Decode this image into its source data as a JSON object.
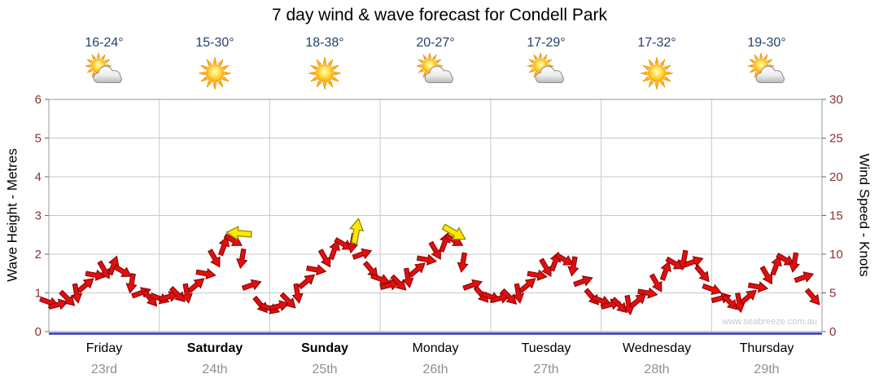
{
  "title": "7 day wind & wave forecast for Condell Park",
  "watermark": "www.seabreeze.com.au",
  "axes": {
    "left_label": "Wave Height - Metres",
    "right_label": "Wind Speed - Knots",
    "left_ticks": [
      "0",
      "1",
      "2",
      "3",
      "4",
      "5",
      "6"
    ],
    "right_ticks": [
      "0",
      "5",
      "10",
      "15",
      "20",
      "25",
      "30"
    ]
  },
  "days": [
    {
      "name": "Friday",
      "date": "23rd",
      "temp": "16-24°",
      "icon": "partly-cloudy",
      "bold": false
    },
    {
      "name": "Saturday",
      "date": "24th",
      "temp": "15-30°",
      "icon": "sunny",
      "bold": true
    },
    {
      "name": "Sunday",
      "date": "25th",
      "temp": "18-38°",
      "icon": "sunny",
      "bold": true
    },
    {
      "name": "Monday",
      "date": "26th",
      "temp": "20-27°",
      "icon": "partly-cloudy",
      "bold": false
    },
    {
      "name": "Tuesday",
      "date": "27th",
      "temp": "17-29°",
      "icon": "partly-cloudy",
      "bold": false
    },
    {
      "name": "Wednesday",
      "date": "28th",
      "temp": "17-32°",
      "icon": "sunny",
      "bold": false
    },
    {
      "name": "Thursday",
      "date": "29th",
      "temp": "19-30°",
      "icon": "partly-cloudy",
      "bold": false
    }
  ],
  "colors": {
    "arrow_red": "#e01010",
    "arrow_red_outline": "#8f0000",
    "arrow_yellow": "#ffe800",
    "arrow_yellow_outline": "#8a8a00",
    "tick_text": "#8b3030",
    "temp_text": "#24406b",
    "date_text": "#8f8f8f",
    "grid": "#c9c9c9",
    "border": "#9a9a9a",
    "baseline": "#3232c8",
    "watermark_text": "#c8c8c8"
  },
  "chart_data": {
    "type": "scatter",
    "subtype": "wind-direction-arrows",
    "title": "7 day wind & wave forecast for Condell Park",
    "x_unit": "hours",
    "x_range": [
      0,
      168
    ],
    "x_day_labels": [
      "Friday",
      "Saturday",
      "Sunday",
      "Monday",
      "Tuesday",
      "Wednesday",
      "Thursday"
    ],
    "left_axis": {
      "label": "Wave Height - Metres",
      "range": [
        0,
        6
      ]
    },
    "right_axis": {
      "label": "Wind Speed - Knots",
      "range": [
        0,
        30
      ]
    },
    "grid": true,
    "wind_knots_points": [
      [
        0,
        3.8,
        20
      ],
      [
        2,
        3.5,
        -15
      ],
      [
        4,
        4.3,
        45
      ],
      [
        6,
        5,
        80
      ],
      [
        8,
        6,
        -40
      ],
      [
        10,
        7.3,
        10
      ],
      [
        12,
        8,
        60
      ],
      [
        14,
        8.5,
        -70
      ],
      [
        16,
        7.8,
        30
      ],
      [
        18,
        6.3,
        100
      ],
      [
        20,
        5,
        -20
      ],
      [
        22,
        4.3,
        50
      ],
      [
        24,
        4.3,
        20
      ],
      [
        26,
        4.5,
        -15
      ],
      [
        28,
        4.8,
        45
      ],
      [
        30,
        5,
        80
      ],
      [
        32,
        6,
        -40
      ],
      [
        34,
        7.5,
        10
      ],
      [
        36,
        9.5,
        60
      ],
      [
        38,
        11,
        -70
      ],
      [
        40,
        11.8,
        30
      ],
      [
        42,
        9.5,
        100
      ],
      [
        44,
        6,
        -20
      ],
      [
        46,
        3.5,
        50
      ],
      [
        48,
        3,
        20
      ],
      [
        50,
        3.3,
        -15
      ],
      [
        52,
        4,
        45
      ],
      [
        54,
        5,
        80
      ],
      [
        56,
        6.5,
        -40
      ],
      [
        58,
        8,
        10
      ],
      [
        60,
        9.5,
        60
      ],
      [
        62,
        10.5,
        -70
      ],
      [
        64,
        11.3,
        30
      ],
      [
        66,
        11.5,
        100
      ],
      [
        68,
        10,
        -20
      ],
      [
        70,
        8,
        50
      ],
      [
        72,
        6.8,
        20
      ],
      [
        74,
        6,
        -15
      ],
      [
        76,
        6.3,
        45
      ],
      [
        78,
        7,
        80
      ],
      [
        80,
        8,
        -40
      ],
      [
        82,
        9.3,
        10
      ],
      [
        84,
        10.5,
        60
      ],
      [
        86,
        11.5,
        -70
      ],
      [
        88,
        11.8,
        30
      ],
      [
        90,
        9,
        100
      ],
      [
        92,
        6,
        -20
      ],
      [
        94,
        4.8,
        50
      ],
      [
        96,
        4.5,
        20
      ],
      [
        98,
        4.3,
        -15
      ],
      [
        100,
        4.5,
        45
      ],
      [
        102,
        5,
        80
      ],
      [
        104,
        6,
        -40
      ],
      [
        106,
        7.3,
        10
      ],
      [
        108,
        8.3,
        60
      ],
      [
        110,
        9,
        -70
      ],
      [
        112,
        9.3,
        30
      ],
      [
        114,
        8.5,
        100
      ],
      [
        116,
        6.5,
        -20
      ],
      [
        118,
        4.5,
        50
      ],
      [
        120,
        4,
        20
      ],
      [
        122,
        3.5,
        -15
      ],
      [
        124,
        3.4,
        45
      ],
      [
        126,
        3.5,
        80
      ],
      [
        128,
        4,
        -40
      ],
      [
        130,
        5,
        10
      ],
      [
        132,
        6.3,
        60
      ],
      [
        134,
        7.8,
        -70
      ],
      [
        136,
        8.8,
        30
      ],
      [
        138,
        9.3,
        100
      ],
      [
        140,
        9,
        -20
      ],
      [
        142,
        7.5,
        50
      ],
      [
        144,
        5.5,
        20
      ],
      [
        146,
        4.3,
        -15
      ],
      [
        148,
        3.8,
        45
      ],
      [
        150,
        3.8,
        80
      ],
      [
        152,
        4.5,
        -40
      ],
      [
        154,
        5.8,
        10
      ],
      [
        156,
        7.3,
        60
      ],
      [
        158,
        8.5,
        -70
      ],
      [
        160,
        9.3,
        30
      ],
      [
        162,
        9,
        100
      ],
      [
        164,
        7,
        -20
      ],
      [
        166,
        4.5,
        50
      ]
    ],
    "gust_markers_yellow": [
      [
        41.5,
        12.7,
        185
      ],
      [
        66.8,
        12.9,
        -80
      ],
      [
        88,
        12.8,
        30
      ]
    ]
  }
}
